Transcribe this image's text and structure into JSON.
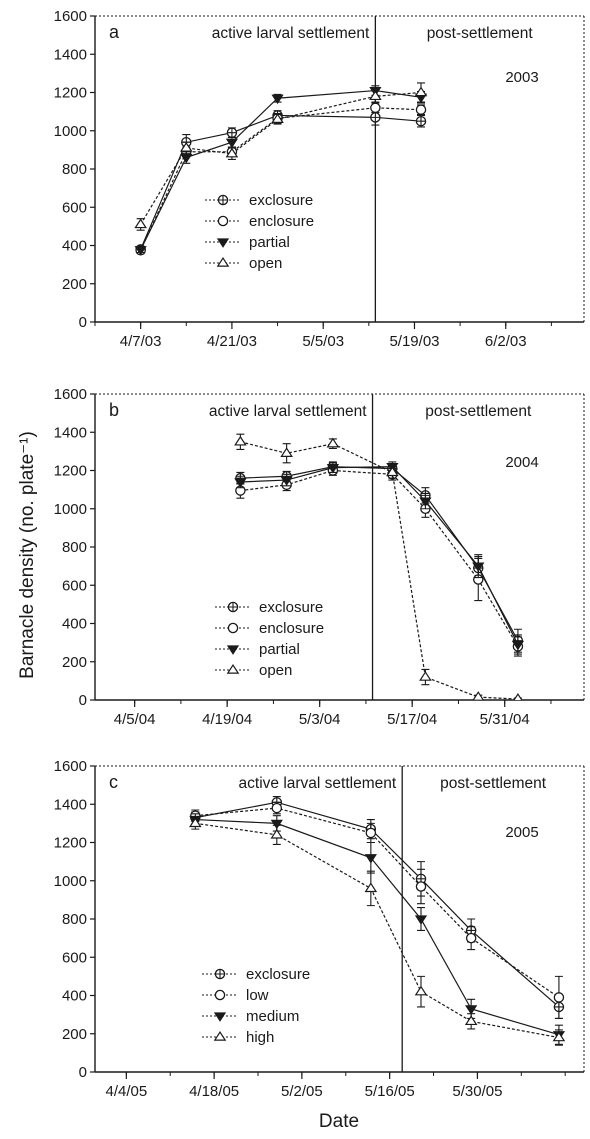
{
  "figure": {
    "ylabel": "Barnacle density (no. plate⁻¹)",
    "xlabel": "Date"
  },
  "chart_data": [
    {
      "type": "line",
      "panel": "a",
      "year": "2003",
      "region_labels": {
        "left": "active larval settlement",
        "right": "post-settlement"
      },
      "divider_x": "5/13/03",
      "ylim": [
        0,
        1600
      ],
      "yticks": [
        0,
        200,
        400,
        600,
        800,
        1000,
        1200,
        1400,
        1600
      ],
      "xlim": [
        "3/31/03",
        "6/14/03"
      ],
      "xticks": [
        "4/7/03",
        "4/21/03",
        "5/5/03",
        "5/19/03",
        "6/2/03"
      ],
      "series": [
        {
          "name": "exclosure",
          "marker": "crossed-circle",
          "x": [
            "4/7/03",
            "4/14/03",
            "4/21/03",
            "4/28/03",
            "5/13/03",
            "5/20/03"
          ],
          "y": [
            380,
            940,
            990,
            1080,
            1070,
            1050
          ],
          "err": [
            15,
            40,
            25,
            25,
            40,
            30
          ]
        },
        {
          "name": "enclosure",
          "marker": "open-circle",
          "x": [
            "4/7/03",
            "4/14/03",
            "4/21/03",
            "4/28/03",
            "5/13/03",
            "5/20/03"
          ],
          "y": [
            375,
            890,
            890,
            1065,
            1120,
            1110
          ],
          "err": [
            15,
            25,
            25,
            25,
            25,
            25
          ]
        },
        {
          "name": "partial",
          "marker": "filled-triangle-down",
          "x": [
            "4/7/03",
            "4/14/03",
            "4/21/03",
            "4/28/03",
            "5/13/03",
            "5/20/03"
          ],
          "y": [
            378,
            860,
            940,
            1170,
            1210,
            1175
          ],
          "err": [
            15,
            30,
            25,
            20,
            25,
            30
          ]
        },
        {
          "name": "open",
          "marker": "open-triangle-up",
          "x": [
            "4/7/03",
            "4/14/03",
            "4/21/03",
            "4/28/03",
            "5/13/03",
            "5/20/03"
          ],
          "y": [
            510,
            910,
            880,
            1060,
            1180,
            1200
          ],
          "err": [
            30,
            30,
            30,
            25,
            30,
            50
          ]
        }
      ]
    },
    {
      "type": "line",
      "panel": "b",
      "year": "2004",
      "region_labels": {
        "left": "active larval settlement",
        "right": "post-settlement"
      },
      "divider_x": "5/11/04",
      "ylim": [
        0,
        1600
      ],
      "yticks": [
        0,
        200,
        400,
        600,
        800,
        1000,
        1200,
        1400,
        1600
      ],
      "xlim": [
        "3/30/04",
        "6/12/04"
      ],
      "xticks": [
        "4/5/04",
        "4/19/04",
        "5/3/04",
        "5/17/04",
        "5/31/04"
      ],
      "series": [
        {
          "name": "exclosure",
          "marker": "crossed-circle",
          "x": [
            "4/21/04",
            "4/28/04",
            "5/5/04",
            "5/14/04",
            "5/19/04",
            "5/27/04",
            "6/2/04"
          ],
          "y": [
            1160,
            1170,
            1220,
            1210,
            1070,
            690,
            310
          ],
          "err": [
            30,
            25,
            25,
            25,
            40,
            60,
            60
          ]
        },
        {
          "name": "enclosure",
          "marker": "open-circle",
          "x": [
            "4/21/04",
            "4/28/04",
            "5/5/04",
            "5/14/04",
            "5/19/04",
            "5/27/04",
            "6/2/04"
          ],
          "y": [
            1095,
            1125,
            1200,
            1180,
            1000,
            630,
            280
          ],
          "err": [
            40,
            30,
            25,
            30,
            45,
            110,
            50
          ]
        },
        {
          "name": "partial",
          "marker": "filled-triangle-down",
          "x": [
            "4/21/04",
            "4/28/04",
            "5/5/04",
            "5/14/04",
            "5/19/04",
            "5/27/04",
            "6/2/04"
          ],
          "y": [
            1140,
            1150,
            1215,
            1220,
            1040,
            700,
            290
          ],
          "err": [
            30,
            30,
            25,
            25,
            40,
            60,
            50
          ]
        },
        {
          "name": "open",
          "marker": "open-triangle-up",
          "x": [
            "4/21/04",
            "4/28/04",
            "5/5/04",
            "5/14/04",
            "5/19/04",
            "5/27/04",
            "6/2/04"
          ],
          "y": [
            1350,
            1290,
            1340,
            1190,
            120,
            15,
            5
          ],
          "err": [
            40,
            50,
            25,
            30,
            40,
            10,
            5
          ]
        }
      ]
    },
    {
      "type": "line",
      "panel": "c",
      "year": "2005",
      "region_labels": {
        "left": "active larval settlement",
        "right": "post-settlement"
      },
      "divider_x": "5/18/05",
      "ylim": [
        0,
        1600
      ],
      "yticks": [
        0,
        200,
        400,
        600,
        800,
        1000,
        1200,
        1400,
        1600
      ],
      "xlim": [
        "3/30/05",
        "6/16/05"
      ],
      "xticks": [
        "4/4/05",
        "4/18/05",
        "5/2/05",
        "5/16/05",
        "5/30/05"
      ],
      "series": [
        {
          "name": "exclosure",
          "marker": "crossed-circle",
          "x": [
            "4/15/05",
            "4/28/05",
            "5/13/05",
            "5/21/05",
            "5/29/05",
            "6/12/05"
          ],
          "y": [
            1330,
            1410,
            1270,
            1010,
            740,
            340
          ],
          "err": [
            30,
            30,
            50,
            90,
            60,
            60
          ]
        },
        {
          "name": "low",
          "marker": "open-circle",
          "x": [
            "4/15/05",
            "4/28/05",
            "5/13/05",
            "5/21/05",
            "5/29/05",
            "6/12/05"
          ],
          "y": [
            1340,
            1380,
            1250,
            970,
            700,
            390
          ],
          "err": [
            30,
            30,
            50,
            90,
            60,
            110
          ]
        },
        {
          "name": "medium",
          "marker": "filled-triangle-down",
          "x": [
            "4/15/05",
            "4/28/05",
            "5/13/05",
            "5/21/05",
            "5/29/05",
            "6/12/05"
          ],
          "y": [
            1320,
            1300,
            1120,
            800,
            330,
            195
          ],
          "err": [
            30,
            40,
            80,
            60,
            50,
            50
          ]
        },
        {
          "name": "high",
          "marker": "open-triangle-up",
          "x": [
            "4/15/05",
            "4/28/05",
            "5/13/05",
            "5/21/05",
            "5/29/05",
            "6/12/05"
          ],
          "y": [
            1300,
            1240,
            960,
            420,
            265,
            180
          ],
          "err": [
            30,
            50,
            90,
            80,
            40,
            40
          ]
        }
      ]
    }
  ]
}
